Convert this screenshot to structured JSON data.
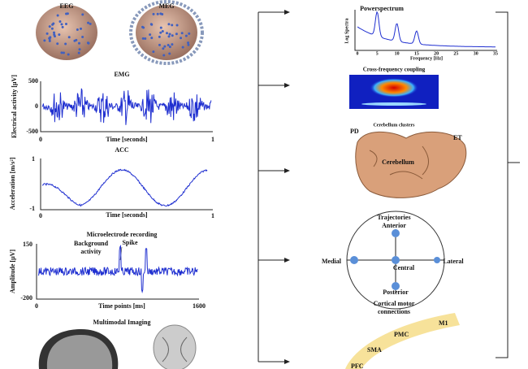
{
  "left": {
    "eeg": "EEG",
    "meg": "MEG",
    "emg": {
      "title": "EMG",
      "ylabel": "Electrical activity [μV]",
      "yticks": [
        "500",
        "0",
        "-500"
      ],
      "xticks": [
        "0",
        "1"
      ],
      "xlabel": "Time [seconds]"
    },
    "acc": {
      "title": "ACC",
      "ylabel": "Acceleration [m/s²]",
      "yticks": [
        "1",
        "-1"
      ],
      "xticks": [
        "0",
        "1"
      ],
      "xlabel": "Time [seconds]"
    },
    "micro": {
      "title": "Microelectrode recording",
      "annotations": [
        "Background",
        "activity",
        "Spike"
      ],
      "ylabel": "Amplitude [μV]",
      "yticks": [
        "150",
        "-200"
      ],
      "xticks": [
        "0",
        "1600"
      ],
      "xlabel": "Time points [ms]"
    },
    "imaging": "Multimodal Imaging"
  },
  "right": {
    "power": {
      "title": "Powerspectrum",
      "ylabel": "Log Spectra",
      "xticks": [
        "0",
        "5",
        "10",
        "15",
        "20",
        "25",
        "30",
        "35"
      ],
      "xlabel": "Frequency [Hz]"
    },
    "cfc": "Cross-frequency coupling",
    "cerebellum": {
      "title": "Cerebellum clusters",
      "labels": [
        "PD",
        "ET",
        "Cerebellum"
      ]
    },
    "trajectories": {
      "title": "Trajectories",
      "labels": [
        "Anterior",
        "Medial",
        "Central",
        "Lateral",
        "Posterior"
      ]
    },
    "cortical": {
      "title": [
        "Cortical motor",
        "connections"
      ],
      "labels": [
        "M1",
        "PMC",
        "SMA",
        "PFC"
      ]
    }
  }
}
